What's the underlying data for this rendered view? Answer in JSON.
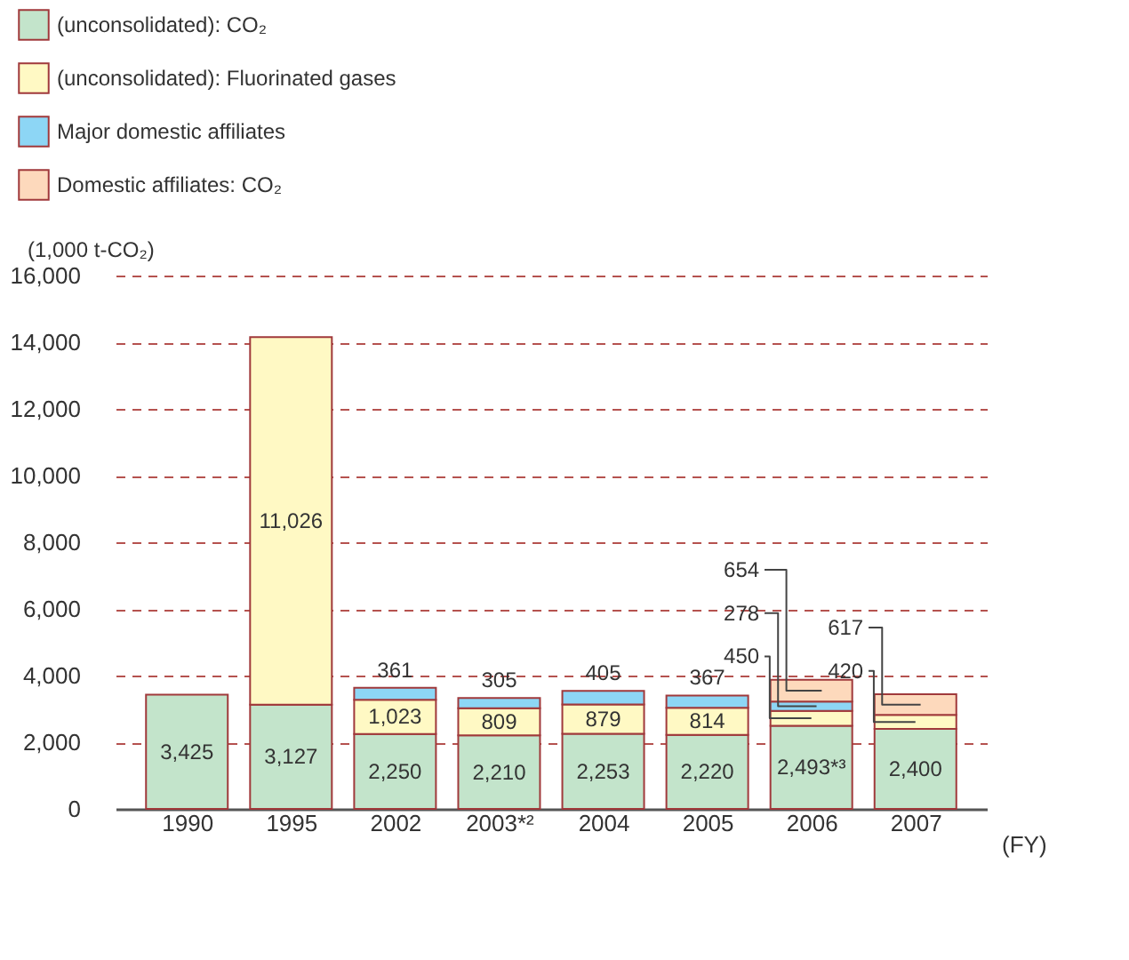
{
  "chart_data": {
    "type": "bar",
    "stacked": true,
    "ylabel": "(1,000 t-CO₂)",
    "xlabel": "(FY)",
    "categories": [
      "1990",
      "1995",
      "2002",
      "2003*²",
      "2004",
      "2005",
      "2006",
      "2007"
    ],
    "ylim": [
      0,
      16000
    ],
    "yticks": [
      0,
      {
        "value": 2000,
        "label": "2,000"
      },
      {
        "value": 4000,
        "label": "4,000"
      },
      {
        "value": 6000,
        "label": "6,000"
      },
      {
        "value": 8000,
        "label": "8,000"
      },
      {
        "value": 10000,
        "label": "10,000"
      },
      {
        "value": 12000,
        "label": "12,000"
      },
      {
        "value": 14000,
        "label": "14,000"
      },
      {
        "value": 16000,
        "label": "16,000"
      }
    ],
    "grid": "y",
    "line_style": "dashed",
    "legend": "top left",
    "series": [
      {
        "name": "(unconsolidated): CO₂",
        "color": "#c3e4cb",
        "values": [
          3425,
          3127,
          2250,
          2210,
          2253,
          2220,
          2493,
          2400
        ],
        "value_labels": [
          "3,425",
          "3,127",
          "2,250",
          "2,210",
          "2,253",
          "2,220",
          "2,493*³",
          "2,400"
        ]
      },
      {
        "name": "(unconsolidated): Fluorinated gases",
        "color": "#fff9c4",
        "values": [
          null,
          11026,
          1023,
          809,
          879,
          814,
          450,
          420
        ],
        "value_labels": [
          null,
          "11,026",
          "1,023",
          "809",
          "879",
          "814",
          "450",
          "420"
        ]
      },
      {
        "name": "Major domestic affiliates",
        "color": "#8dd6f5",
        "values": [
          null,
          null,
          361,
          305,
          405,
          367,
          278,
          null
        ],
        "value_labels": [
          null,
          null,
          "361",
          "305",
          "405",
          "367",
          "278",
          null
        ]
      },
      {
        "name": "Domestic affiliates: CO₂",
        "color": "#fdd9bc",
        "values": [
          null,
          null,
          null,
          null,
          null,
          null,
          654,
          617
        ],
        "value_labels": [
          null,
          null,
          null,
          null,
          null,
          null,
          "654",
          "617"
        ]
      }
    ]
  }
}
